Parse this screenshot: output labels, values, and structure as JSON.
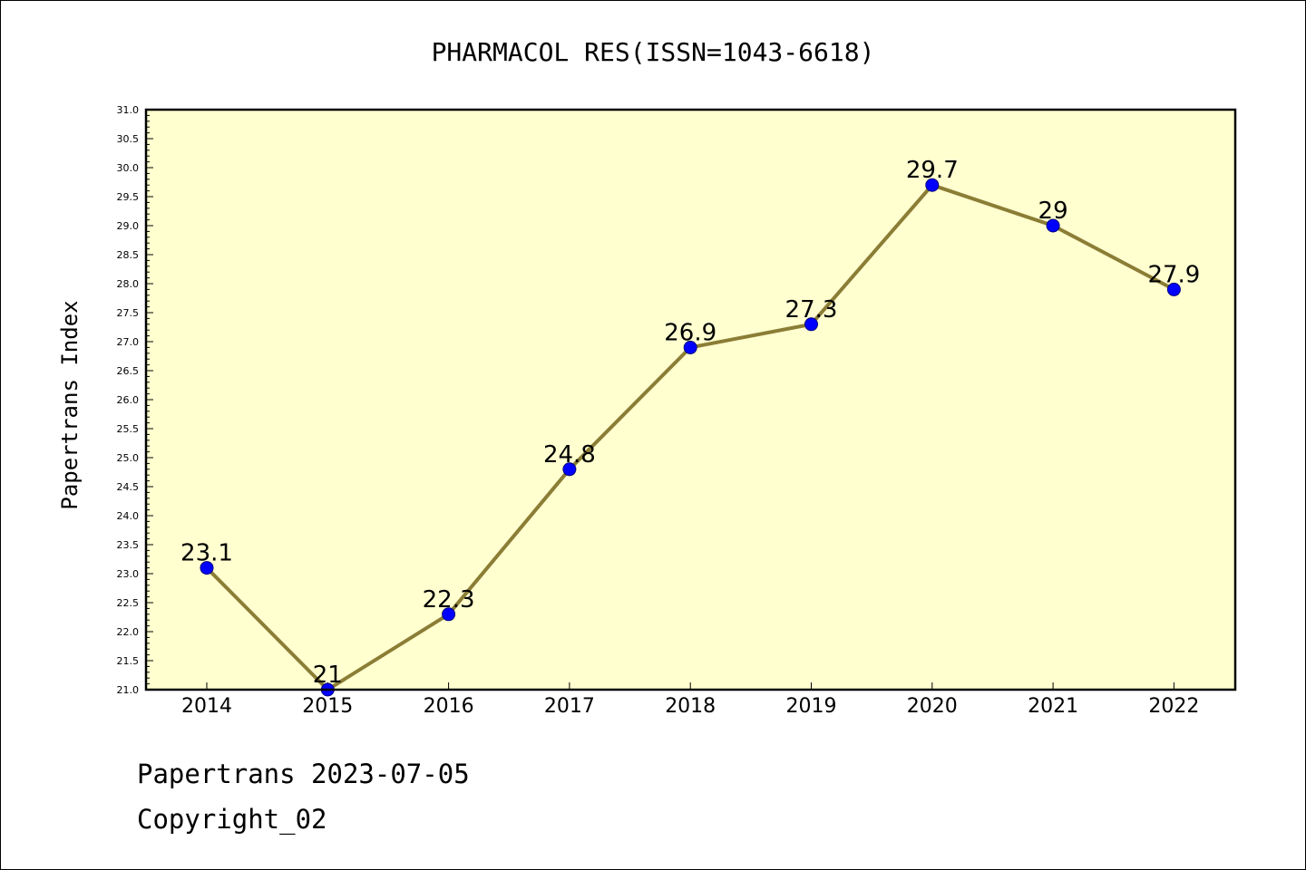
{
  "chart_data": {
    "type": "line",
    "title": "PHARMACOL RES(ISSN=1043-6618)",
    "ylabel": "Papertrans Index",
    "xlabel": "",
    "categories": [
      "2014",
      "2015",
      "2016",
      "2017",
      "2018",
      "2019",
      "2020",
      "2021",
      "2022"
    ],
    "series": [
      {
        "values": [
          23.1,
          21,
          22.3,
          24.8,
          26.9,
          27.3,
          29.7,
          29,
          27.9
        ],
        "data_labels": [
          "23.1",
          "21",
          "22.3",
          "24.8",
          "26.9",
          "27.3",
          "29.7",
          "29",
          "27.9"
        ]
      }
    ],
    "ylim": [
      21.0,
      31.0
    ],
    "yticks": [
      "21.0",
      "21.5",
      "22.0",
      "22.5",
      "23.0",
      "23.5",
      "24.0",
      "24.5",
      "25.0",
      "25.5",
      "26.0",
      "26.5",
      "27.0",
      "27.5",
      "28.0",
      "28.5",
      "29.0",
      "29.5",
      "30.0",
      "30.5",
      "31.0"
    ],
    "grid": false,
    "colors": {
      "plot_background": "#ffffd0",
      "line": "#8b7d35",
      "marker": "#0000ff",
      "marker_edge": "#000080",
      "axis": "#000000"
    }
  },
  "footer": {
    "line1": "Papertrans 2023-07-05",
    "line2": "Copyright_02"
  }
}
